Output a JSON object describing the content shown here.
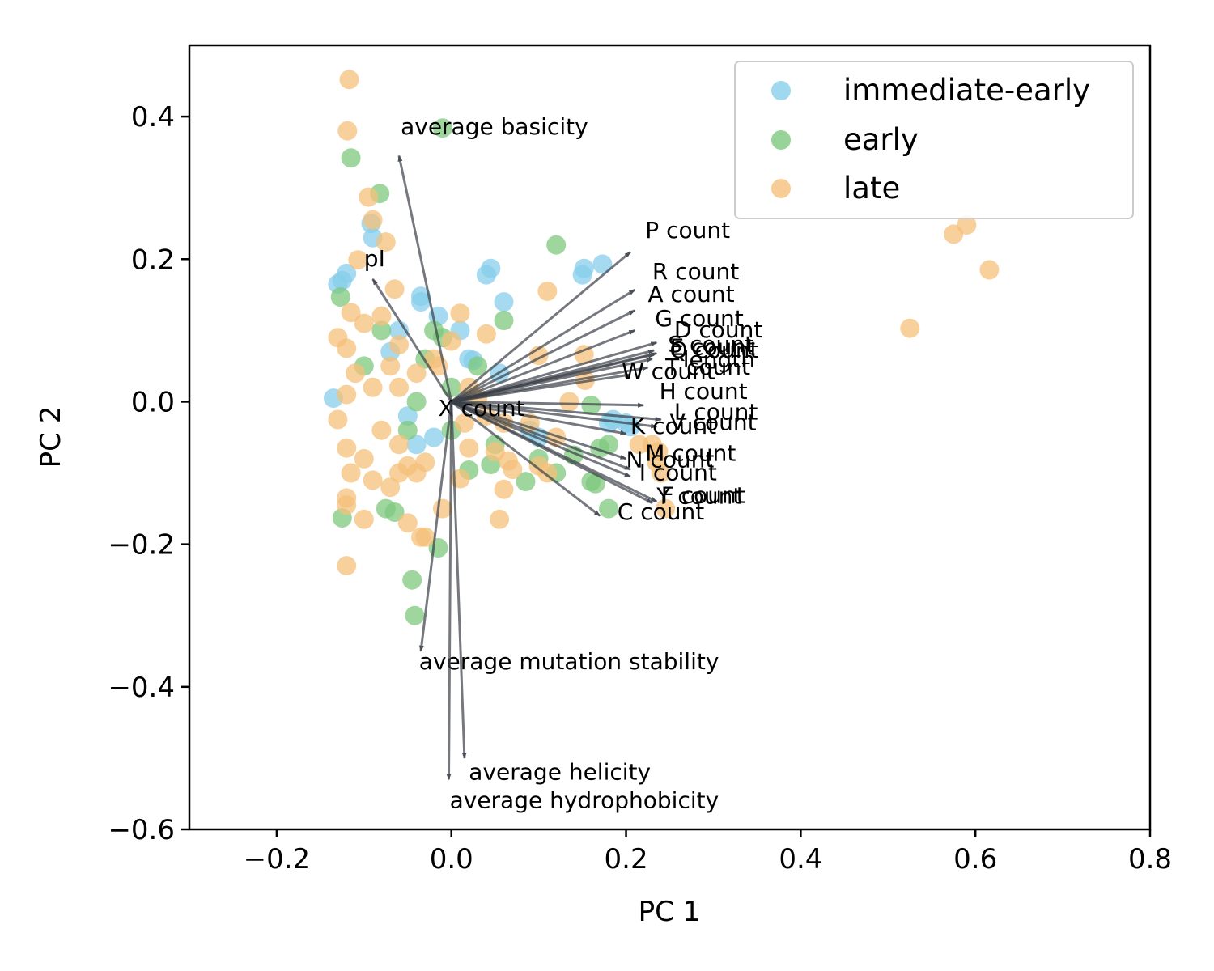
{
  "chart_data": {
    "type": "scatter",
    "xlabel": "PC 1",
    "ylabel": "PC 2",
    "xlim": [
      -0.3,
      0.8
    ],
    "ylim": [
      -0.6,
      0.5
    ],
    "xticks": [
      -0.2,
      0.0,
      0.2,
      0.4,
      0.6,
      0.8
    ],
    "xtick_labels": [
      "−0.2",
      "0.0",
      "0.2",
      "0.4",
      "0.6",
      "0.8"
    ],
    "yticks": [
      -0.6,
      -0.4,
      -0.2,
      0.0,
      0.2,
      0.4
    ],
    "ytick_labels": [
      "−0.6",
      "−0.4",
      "−0.2",
      "0.0",
      "0.2",
      "0.4"
    ],
    "grid": false,
    "legend_position": "top-right",
    "series": [
      {
        "name": "immediate-early",
        "color": "#87ceeb",
        "points": [
          [
            -0.135,
            0.005
          ],
          [
            -0.12,
            0.18
          ],
          [
            -0.125,
            0.17
          ],
          [
            -0.13,
            0.165
          ],
          [
            -0.092,
            0.25
          ],
          [
            -0.09,
            0.23
          ],
          [
            -0.07,
            0.07
          ],
          [
            -0.06,
            0.1
          ],
          [
            -0.035,
            0.14
          ],
          [
            -0.035,
            0.148
          ],
          [
            -0.015,
            0.12
          ],
          [
            0.01,
            0.1
          ],
          [
            0.02,
            0.06
          ],
          [
            0.025,
            0.058
          ],
          [
            0.04,
            0.178
          ],
          [
            0.045,
            0.187
          ],
          [
            0.055,
            0.04
          ],
          [
            0.06,
            0.14
          ],
          [
            0.15,
            0.178
          ],
          [
            0.152,
            0.187
          ],
          [
            0.173,
            0.193
          ],
          [
            0.18,
            -0.03
          ],
          [
            0.185,
            -0.025
          ],
          [
            0.2,
            -0.03
          ],
          [
            0.205,
            -0.035
          ],
          [
            0.1,
            -0.05
          ],
          [
            0.09,
            -0.04
          ],
          [
            -0.04,
            -0.06
          ],
          [
            -0.02,
            -0.05
          ],
          [
            -0.05,
            -0.02
          ]
        ]
      },
      {
        "name": "early",
        "color": "#7ec87e",
        "points": [
          [
            -0.01,
            0.384
          ],
          [
            -0.115,
            0.342
          ],
          [
            -0.082,
            0.292
          ],
          [
            -0.127,
            0.147
          ],
          [
            -0.065,
            -0.155
          ],
          [
            -0.075,
            -0.15
          ],
          [
            -0.125,
            -0.163
          ],
          [
            -0.045,
            -0.25
          ],
          [
            -0.042,
            -0.3
          ],
          [
            -0.015,
            -0.205
          ],
          [
            0.06,
            0.114
          ],
          [
            0.12,
            0.22
          ],
          [
            0.045,
            -0.088
          ],
          [
            0.02,
            -0.096
          ],
          [
            0.085,
            -0.112
          ],
          [
            0.16,
            -0.112
          ],
          [
            0.165,
            -0.115
          ],
          [
            0.18,
            -0.15
          ],
          [
            0.17,
            -0.065
          ],
          [
            0.18,
            -0.06
          ],
          [
            0.14,
            -0.075
          ],
          [
            0.16,
            -0.005
          ],
          [
            -0.02,
            0.1
          ],
          [
            -0.01,
            0.09
          ],
          [
            -0.03,
            0.06
          ],
          [
            0.0,
            -0.04
          ],
          [
            -0.05,
            -0.04
          ],
          [
            -0.04,
            0.0
          ],
          [
            0.03,
            0.05
          ],
          [
            0.1,
            -0.08
          ],
          [
            0.12,
            -0.1
          ],
          [
            -0.08,
            0.1
          ],
          [
            -0.1,
            0.05
          ],
          [
            0.0,
            0.02
          ],
          [
            0.05,
            -0.06
          ]
        ]
      },
      {
        "name": "late",
        "color": "#f5c07a",
        "points": [
          [
            -0.117,
            0.452
          ],
          [
            -0.119,
            0.38
          ],
          [
            -0.095,
            0.287
          ],
          [
            -0.09,
            0.255
          ],
          [
            -0.075,
            0.224
          ],
          [
            -0.107,
            0.199
          ],
          [
            -0.065,
            0.158
          ],
          [
            -0.115,
            0.125
          ],
          [
            -0.1,
            0.11
          ],
          [
            -0.08,
            0.12
          ],
          [
            -0.13,
            0.09
          ],
          [
            -0.12,
            0.075
          ],
          [
            -0.11,
            0.04
          ],
          [
            -0.09,
            0.02
          ],
          [
            -0.12,
            0.01
          ],
          [
            -0.13,
            -0.025
          ],
          [
            -0.12,
            -0.065
          ],
          [
            -0.115,
            -0.1
          ],
          [
            -0.12,
            -0.135
          ],
          [
            -0.12,
            -0.145
          ],
          [
            -0.1,
            -0.165
          ],
          [
            -0.12,
            -0.23
          ],
          [
            -0.09,
            -0.11
          ],
          [
            -0.07,
            -0.12
          ],
          [
            -0.06,
            -0.06
          ],
          [
            -0.05,
            -0.09
          ],
          [
            -0.04,
            -0.1
          ],
          [
            -0.03,
            -0.085
          ],
          [
            -0.035,
            -0.19
          ],
          [
            -0.03,
            -0.19
          ],
          [
            -0.05,
            -0.17
          ],
          [
            -0.01,
            -0.15
          ],
          [
            0.01,
            -0.108
          ],
          [
            0.02,
            -0.065
          ],
          [
            0.05,
            -0.07
          ],
          [
            0.06,
            -0.123
          ],
          [
            0.065,
            -0.083
          ],
          [
            0.07,
            -0.095
          ],
          [
            0.1,
            -0.09
          ],
          [
            0.11,
            -0.1
          ],
          [
            0.09,
            -0.03
          ],
          [
            0.12,
            -0.05
          ],
          [
            0.135,
            0.0
          ],
          [
            0.153,
            0.03
          ],
          [
            0.1,
            0.065
          ],
          [
            0.11,
            0.155
          ],
          [
            0.152,
            0.066
          ],
          [
            0.04,
            0.095
          ],
          [
            0.01,
            0.124
          ],
          [
            0.0,
            0.085
          ],
          [
            -0.02,
            0.06
          ],
          [
            -0.04,
            0.04
          ],
          [
            -0.06,
            0.02
          ],
          [
            0.02,
            0.02
          ],
          [
            0.04,
            -0.02
          ],
          [
            0.06,
            -0.03
          ],
          [
            0.015,
            -0.03
          ],
          [
            -0.015,
            0.05
          ],
          [
            0.03,
            0.005
          ],
          [
            0.055,
            -0.165
          ],
          [
            0.237,
            -0.07
          ],
          [
            0.24,
            -0.1
          ],
          [
            0.235,
            -0.085
          ],
          [
            0.245,
            -0.15
          ],
          [
            0.23,
            -0.06
          ],
          [
            0.215,
            -0.06
          ],
          [
            0.525,
            0.103
          ],
          [
            0.575,
            0.235
          ],
          [
            0.59,
            0.248
          ],
          [
            0.616,
            0.185
          ],
          [
            -0.06,
            0.08
          ],
          [
            -0.07,
            0.05
          ],
          [
            -0.08,
            -0.04
          ],
          [
            -0.1,
            -0.08
          ],
          [
            -0.06,
            -0.1
          ]
        ]
      }
    ],
    "loadings": [
      {
        "label": "average basicity",
        "x": -0.06,
        "y": 0.345,
        "tx": -0.058,
        "ty": 0.375
      },
      {
        "label": "pI",
        "x": -0.09,
        "y": 0.172,
        "tx": -0.1,
        "ty": 0.19
      },
      {
        "label": "P count",
        "x": 0.205,
        "y": 0.21,
        "tx": 0.222,
        "ty": 0.23
      },
      {
        "label": "R count",
        "x": 0.21,
        "y": 0.157,
        "tx": 0.23,
        "ty": 0.172
      },
      {
        "label": "A count",
        "x": 0.21,
        "y": 0.128,
        "tx": 0.225,
        "ty": 0.14
      },
      {
        "label": "G count",
        "x": 0.21,
        "y": 0.1,
        "tx": 0.233,
        "ty": 0.106
      },
      {
        "label": "D count",
        "x": 0.235,
        "y": 0.083,
        "tx": 0.255,
        "ty": 0.09
      },
      {
        "label": "S count",
        "x": 0.232,
        "y": 0.072,
        "tx": 0.248,
        "ty": 0.07
      },
      {
        "label": "E count",
        "x": 0.235,
        "y": 0.068,
        "tx": 0.25,
        "ty": 0.066
      },
      {
        "label": "Q count",
        "x": 0.232,
        "y": 0.066,
        "tx": 0.25,
        "ty": 0.062
      },
      {
        "label": "length",
        "x": 0.23,
        "y": 0.06,
        "tx": 0.265,
        "ty": 0.048
      },
      {
        "label": "T count",
        "x": 0.225,
        "y": 0.048,
        "tx": 0.245,
        "ty": 0.038
      },
      {
        "label": "W count",
        "x": 0.205,
        "y": 0.038,
        "tx": 0.195,
        "ty": 0.032
      },
      {
        "label": "H count",
        "x": 0.22,
        "y": -0.005,
        "tx": 0.238,
        "ty": 0.004
      },
      {
        "label": "L count",
        "x": 0.24,
        "y": -0.025,
        "tx": 0.255,
        "ty": -0.025
      },
      {
        "label": "V count",
        "x": 0.235,
        "y": -0.035,
        "tx": 0.25,
        "ty": -0.04
      },
      {
        "label": "K count",
        "x": 0.2,
        "y": -0.045,
        "tx": 0.205,
        "ty": -0.045
      },
      {
        "label": "M count",
        "x": 0.2,
        "y": -0.08,
        "tx": 0.222,
        "ty": -0.083
      },
      {
        "label": "N count",
        "x": 0.205,
        "y": -0.095,
        "tx": 0.2,
        "ty": -0.092
      },
      {
        "label": "I count",
        "x": 0.205,
        "y": -0.105,
        "tx": 0.215,
        "ty": -0.11
      },
      {
        "label": "F count",
        "x": 0.235,
        "y": -0.14,
        "tx": 0.24,
        "ty": -0.142
      },
      {
        "label": "Y count",
        "x": 0.23,
        "y": -0.142,
        "tx": 0.235,
        "ty": -0.143
      },
      {
        "label": "C count",
        "x": 0.17,
        "y": -0.16,
        "tx": 0.19,
        "ty": -0.165
      },
      {
        "label": "X count",
        "x": 0.0,
        "y": 0.0,
        "tx": -0.015,
        "ty": -0.02
      },
      {
        "label": "average mutation stability",
        "x": -0.035,
        "y": -0.35,
        "tx": -0.037,
        "ty": -0.375
      },
      {
        "label": "average helicity",
        "x": 0.015,
        "y": -0.5,
        "tx": 0.02,
        "ty": -0.53
      },
      {
        "label": "average hydrophobicity",
        "x": -0.003,
        "y": -0.53,
        "tx": -0.002,
        "ty": -0.57
      }
    ]
  }
}
